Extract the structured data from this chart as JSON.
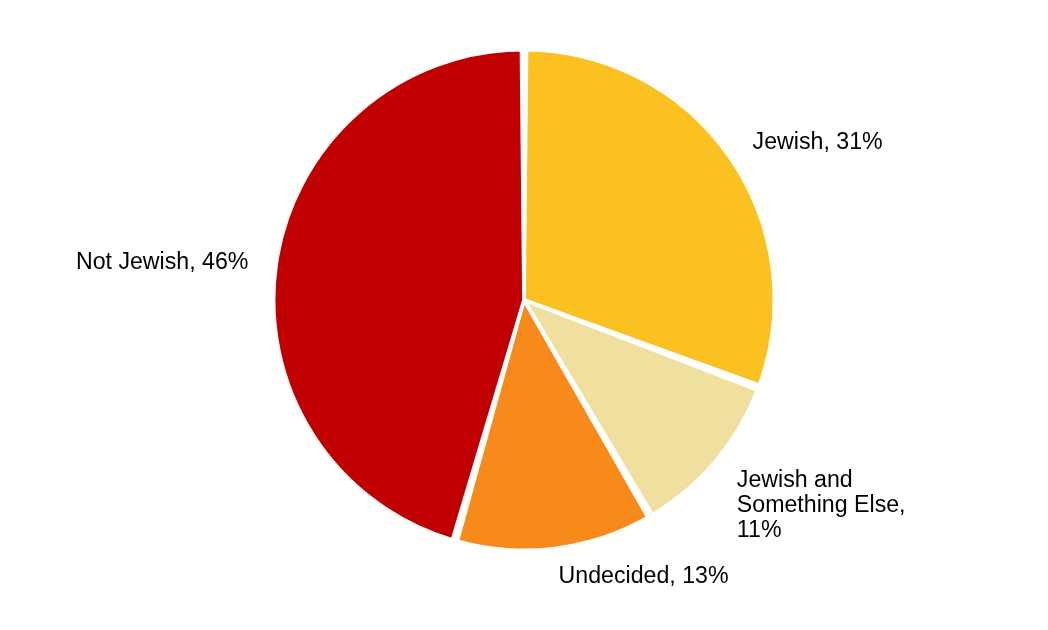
{
  "chart_data": {
    "type": "pie",
    "categories": [
      "Jewish, 31%",
      "Jewish and Something Else, 11%",
      "Undecided, 13%",
      "Not Jewish, 46%"
    ],
    "values": [
      31,
      11,
      13,
      46
    ],
    "colors": [
      "#fbc120",
      "#efe0a0",
      "#f78a1a",
      "#c00000"
    ]
  }
}
